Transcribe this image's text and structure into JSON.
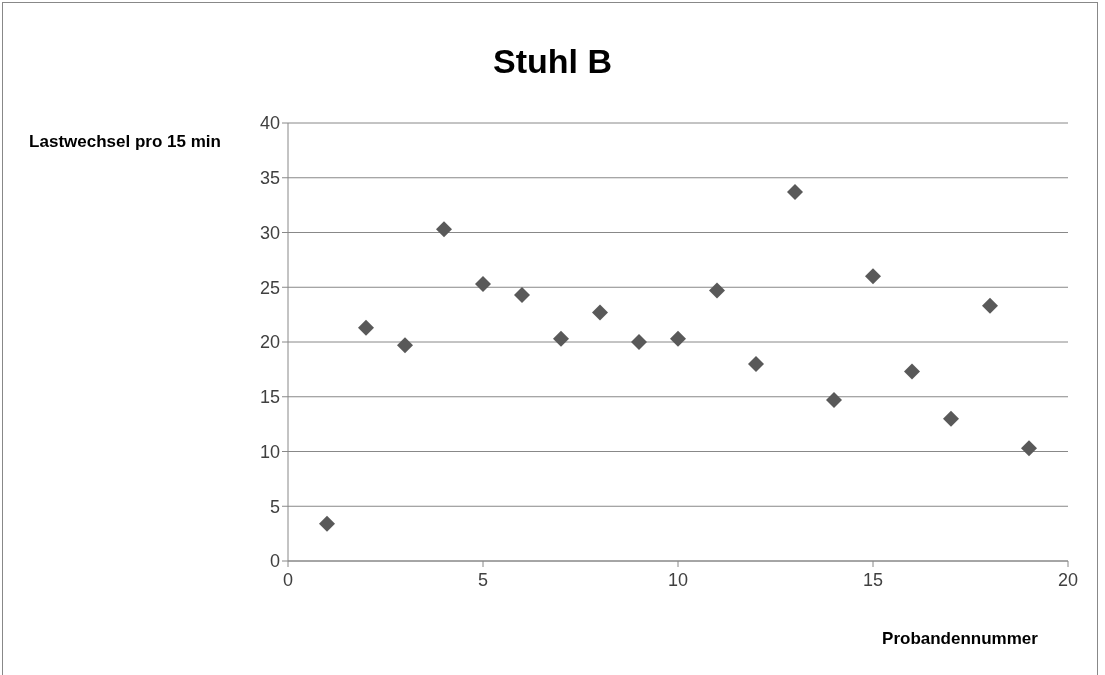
{
  "chart_data": {
    "type": "scatter",
    "title": "Stuhl B",
    "xlabel": "Probandennummer",
    "ylabel": "Lastwechsel pro 15 min",
    "x": [
      1,
      2,
      3,
      4,
      5,
      6,
      7,
      8,
      9,
      10,
      11,
      12,
      13,
      14,
      15,
      16,
      17,
      18,
      19
    ],
    "series": [
      {
        "color": "#595959",
        "values": [
          3.4,
          21.3,
          19.7,
          30.3,
          25.3,
          24.3,
          20.3,
          22.7,
          20.0,
          20.3,
          24.7,
          18.0,
          33.7,
          14.7,
          26.0,
          17.3,
          13.0,
          23.3,
          10.3
        ]
      }
    ],
    "xlim": [
      0,
      20
    ],
    "xticks": [
      0,
      5,
      10,
      15,
      20
    ],
    "ylim": [
      0,
      40
    ],
    "yticks": [
      0,
      5,
      10,
      15,
      20,
      25,
      30,
      35,
      40
    ],
    "grid": "y",
    "legend": false,
    "marker": "diamond"
  }
}
